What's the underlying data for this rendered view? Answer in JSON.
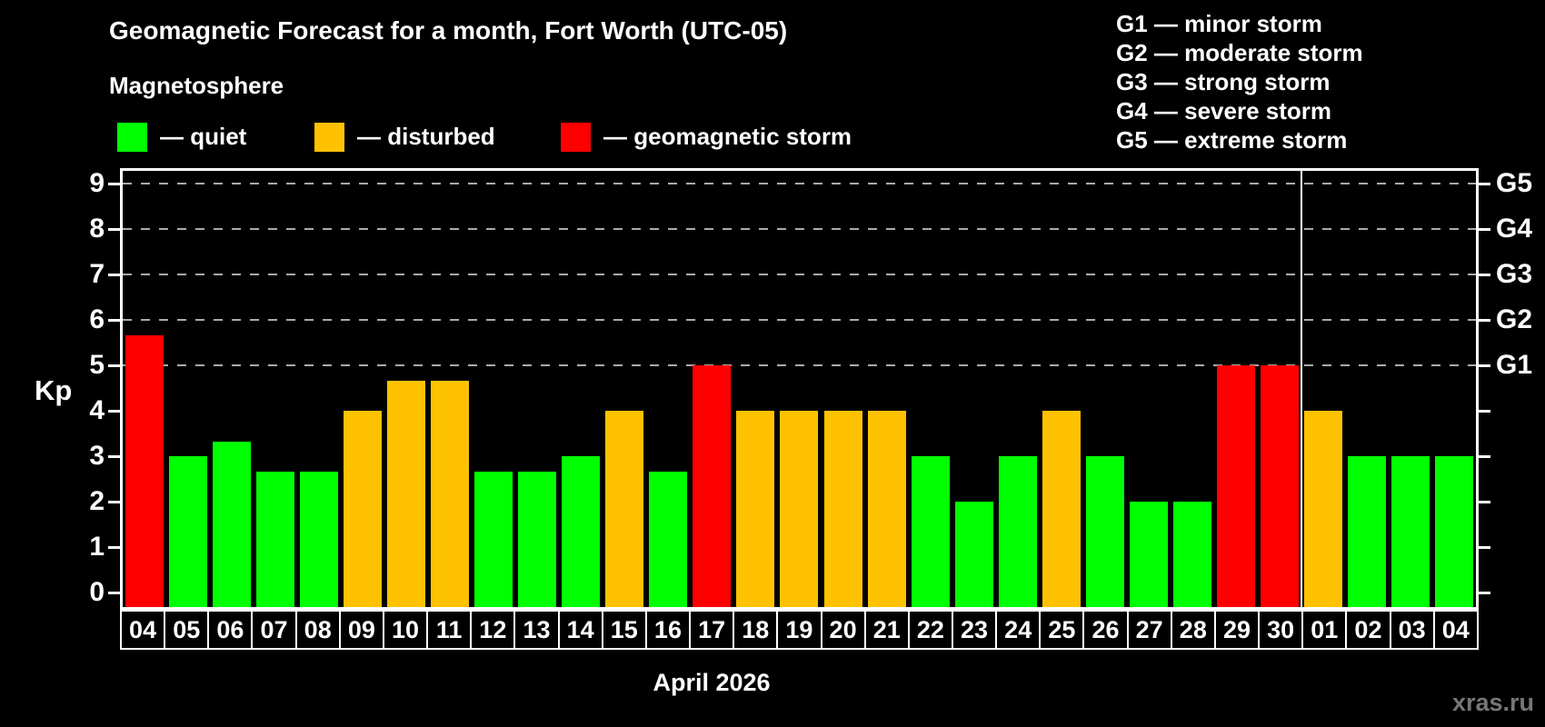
{
  "title": "Geomagnetic Forecast for a month, Fort Worth (UTC-05)",
  "subtitle": "Magnetosphere",
  "legend": {
    "quiet_label": "— quiet",
    "disturbed_label": "— disturbed",
    "storm_label": "— geomagnetic storm"
  },
  "g_scale_legend": [
    "G1 — minor storm",
    "G2 — moderate storm",
    "G3 — strong storm",
    "G4 — severe storm",
    "G5 — extreme storm"
  ],
  "month_label": "April 2026",
  "watermark": "xras.ru",
  "colors": {
    "background": "#000000",
    "text": "#ffffff",
    "quiet": "#00ff00",
    "disturbed": "#ffc200",
    "storm": "#ff0000",
    "grid": "#aaaaaa",
    "axis": "#ffffff",
    "watermark": "#777777"
  },
  "chart_data": {
    "type": "bar",
    "title": "Geomagnetic Forecast for a month, Fort Worth (UTC-05)",
    "subtitle": "Magnetosphere",
    "ylabel": "Kp",
    "xlabel": "April 2026",
    "ylim": [
      -0.32,
      9.34
    ],
    "yticks": [
      0,
      1,
      2,
      3,
      4,
      5,
      6,
      7,
      8,
      9
    ],
    "gridlines_at_kp": [
      5,
      6,
      7,
      8,
      9
    ],
    "grid_style": "dashed",
    "legend_position": "top-left",
    "right_axis_labels": [
      {
        "label": "G1",
        "kp": 5
      },
      {
        "label": "G2",
        "kp": 6
      },
      {
        "label": "G3",
        "kp": 7
      },
      {
        "label": "G4",
        "kp": 8
      },
      {
        "label": "G5",
        "kp": 9
      }
    ],
    "categories": [
      "04",
      "05",
      "06",
      "07",
      "08",
      "09",
      "10",
      "11",
      "12",
      "13",
      "14",
      "15",
      "16",
      "17",
      "18",
      "19",
      "20",
      "21",
      "22",
      "23",
      "24",
      "25",
      "26",
      "27",
      "28",
      "29",
      "30",
      "01",
      "02",
      "03",
      "04"
    ],
    "values": [
      5.67,
      3,
      3.33,
      2.67,
      2.67,
      4,
      4.67,
      4.67,
      2.67,
      2.67,
      3,
      4,
      2.67,
      5,
      4,
      4,
      4,
      4,
      3,
      2,
      3,
      4,
      3,
      2,
      2,
      5,
      5,
      4,
      3,
      3,
      3
    ],
    "statuses": [
      "storm",
      "quiet",
      "quiet",
      "quiet",
      "quiet",
      "disturbed",
      "disturbed",
      "disturbed",
      "quiet",
      "quiet",
      "quiet",
      "disturbed",
      "quiet",
      "storm",
      "disturbed",
      "disturbed",
      "disturbed",
      "disturbed",
      "quiet",
      "quiet",
      "quiet",
      "disturbed",
      "quiet",
      "quiet",
      "quiet",
      "storm",
      "storm",
      "disturbed",
      "quiet",
      "quiet",
      "quiet"
    ],
    "month_divider_after_index": 26
  }
}
